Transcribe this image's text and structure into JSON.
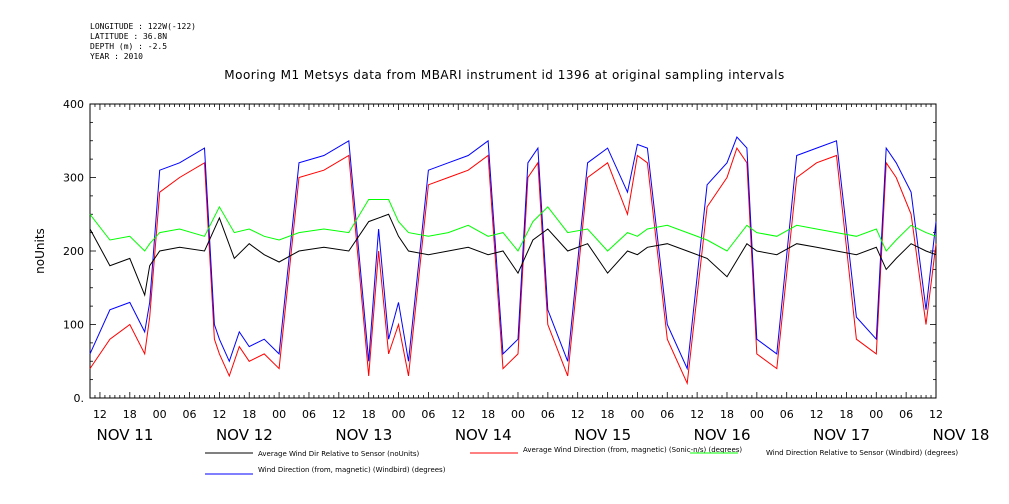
{
  "header": {
    "longitude": "LONGITUDE : 122W(-122)",
    "latitude": "LATITUDE : 36.8N",
    "depth": "DEPTH (m) : -2.5",
    "year": "YEAR : 2010"
  },
  "chart_data": {
    "type": "line",
    "title": "Mooring M1 Metsys data from MBARI instrument id 1396 at original sampling intervals",
    "ylabel": "noUnits",
    "xlabel": "",
    "ylim": [
      0,
      400
    ],
    "y_ticks": [
      "0.",
      "100",
      "200",
      "300",
      "400"
    ],
    "x_hour_ticks": [
      "12",
      "18",
      "00",
      "06",
      "12",
      "18",
      "00",
      "06",
      "12",
      "18",
      "00",
      "06",
      "12",
      "18",
      "00",
      "06",
      "12",
      "18",
      "00",
      "06",
      "12",
      "18",
      "00",
      "06",
      "12",
      "18",
      "00",
      "06",
      "12"
    ],
    "x_day_labels": [
      "NOV 11",
      "NOV 12",
      "NOV 13",
      "NOV 14",
      "NOV 15",
      "NOV 16",
      "NOV 17",
      "NOV 18"
    ],
    "x_range_hours": [
      10,
      180
    ],
    "grid": false,
    "series": [
      {
        "name": "Average Wind Dir Relative to Sensor (noUnits)",
        "color": "#000000",
        "x": [
          10,
          14,
          18,
          21,
          22,
          24,
          28,
          33,
          36,
          39,
          42,
          45,
          48,
          52,
          57,
          62,
          66,
          70,
          72,
          74,
          78,
          82,
          86,
          90,
          93,
          96,
          99,
          102,
          106,
          110,
          114,
          118,
          120,
          122,
          126,
          130,
          134,
          138,
          142,
          144,
          148,
          152,
          156,
          160,
          164,
          168,
          170,
          172,
          175,
          178,
          180
        ],
        "y": [
          230,
          180,
          190,
          140,
          180,
          200,
          205,
          200,
          245,
          190,
          210,
          195,
          185,
          200,
          205,
          200,
          240,
          250,
          220,
          200,
          195,
          200,
          205,
          195,
          200,
          170,
          215,
          230,
          200,
          210,
          170,
          200,
          195,
          205,
          210,
          200,
          190,
          165,
          210,
          200,
          195,
          210,
          205,
          200,
          195,
          205,
          175,
          190,
          210,
          200,
          195
        ]
      },
      {
        "name": "Average Wind Direction (from, magnetic) (Sonic-n/s) (degrees)",
        "color": "#ff0000",
        "x": [
          10,
          14,
          18,
          21,
          22,
          24,
          28,
          33,
          35,
          36,
          38,
          40,
          42,
          45,
          48,
          52,
          57,
          62,
          66,
          68,
          70,
          72,
          74,
          78,
          82,
          86,
          90,
          93,
          96,
          98,
          100,
          102,
          106,
          110,
          114,
          118,
          120,
          122,
          126,
          130,
          134,
          138,
          140,
          142,
          144,
          148,
          152,
          156,
          160,
          164,
          168,
          170,
          172,
          175,
          178,
          180
        ],
        "y": [
          40,
          80,
          100,
          60,
          110,
          280,
          300,
          320,
          80,
          60,
          30,
          70,
          50,
          60,
          40,
          300,
          310,
          330,
          30,
          200,
          60,
          100,
          30,
          290,
          300,
          310,
          330,
          40,
          60,
          300,
          320,
          100,
          30,
          300,
          320,
          250,
          330,
          320,
          80,
          20,
          260,
          300,
          340,
          320,
          60,
          40,
          300,
          320,
          330,
          80,
          60,
          320,
          300,
          250,
          100,
          210
        ]
      },
      {
        "name": "Wind Direction Relative to Sensor (Windbird) (degrees)",
        "color": "#00ff00",
        "x": [
          10,
          14,
          18,
          21,
          22,
          24,
          28,
          33,
          36,
          39,
          42,
          45,
          48,
          52,
          57,
          62,
          66,
          70,
          72,
          74,
          78,
          82,
          86,
          90,
          93,
          96,
          99,
          102,
          106,
          110,
          114,
          118,
          120,
          122,
          126,
          130,
          134,
          138,
          142,
          144,
          148,
          152,
          156,
          160,
          164,
          168,
          170,
          172,
          175,
          178,
          180
        ],
        "y": [
          250,
          215,
          220,
          200,
          210,
          225,
          230,
          220,
          260,
          225,
          230,
          220,
          215,
          225,
          230,
          225,
          270,
          270,
          240,
          225,
          220,
          225,
          235,
          220,
          225,
          200,
          240,
          260,
          225,
          230,
          200,
          225,
          220,
          230,
          235,
          225,
          215,
          200,
          235,
          225,
          220,
          235,
          230,
          225,
          220,
          230,
          200,
          215,
          235,
          225,
          220
        ]
      },
      {
        "name": "Wind Direction (from, magnetic) (Windbird) (degrees)",
        "color": "#0000ff",
        "x": [
          10,
          14,
          18,
          21,
          22,
          24,
          28,
          33,
          35,
          36,
          38,
          40,
          42,
          45,
          48,
          52,
          57,
          62,
          66,
          68,
          70,
          72,
          74,
          78,
          82,
          86,
          90,
          93,
          96,
          98,
          100,
          102,
          106,
          110,
          114,
          118,
          120,
          122,
          126,
          130,
          134,
          138,
          140,
          142,
          144,
          148,
          152,
          156,
          160,
          164,
          168,
          170,
          172,
          175,
          178,
          180
        ],
        "y": [
          60,
          120,
          130,
          90,
          130,
          310,
          320,
          340,
          100,
          80,
          50,
          90,
          70,
          80,
          60,
          320,
          330,
          350,
          50,
          230,
          80,
          130,
          50,
          310,
          320,
          330,
          350,
          60,
          80,
          320,
          340,
          120,
          50,
          320,
          340,
          280,
          345,
          340,
          100,
          40,
          290,
          320,
          355,
          340,
          80,
          60,
          330,
          340,
          350,
          110,
          80,
          340,
          320,
          280,
          120,
          240
        ]
      }
    ]
  }
}
